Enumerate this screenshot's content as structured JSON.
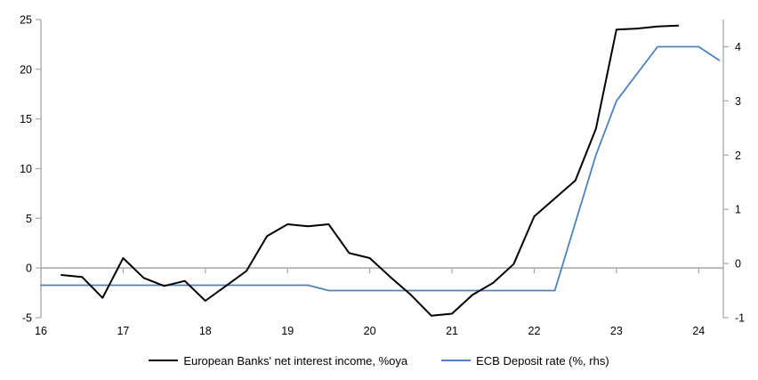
{
  "chart_data": {
    "type": "line",
    "title": "",
    "x_range": [
      16,
      24.3
    ],
    "x_ticks": [
      16,
      17,
      18,
      19,
      20,
      21,
      22,
      23,
      24
    ],
    "left_axis": {
      "range": [
        -5,
        25
      ],
      "ticks": [
        25,
        20,
        15,
        10,
        5,
        0,
        -5
      ]
    },
    "right_axis": {
      "range": [
        -1,
        4.5
      ],
      "ticks": [
        4,
        3,
        2,
        1,
        0,
        -1
      ]
    },
    "grid": false,
    "zero_line": true,
    "axis_color": "#a6a6a6",
    "legend_position": "bottom-center",
    "series": [
      {
        "name": "European Banks' net interest income, %oya",
        "axis": "left",
        "color": "#000000",
        "line_width": 2,
        "x_start": 16.25,
        "x_step": 0.25,
        "values": [
          -0.7,
          -0.9,
          -3.0,
          1.0,
          -1.0,
          -1.8,
          -1.3,
          -3.3,
          -1.8,
          -0.3,
          3.2,
          4.4,
          4.2,
          4.4,
          1.5,
          1.0,
          -0.9,
          -2.7,
          -4.8,
          -4.6,
          -2.7,
          -1.5,
          0.4,
          5.2,
          7.0,
          8.8,
          14.0,
          24.0,
          24.1,
          24.3,
          24.4
        ]
      },
      {
        "name": "ECB Deposit rate (%, rhs)",
        "axis": "right",
        "color": "#4e82bd",
        "line_width": 1.8,
        "x_start": 16.0,
        "x_step": 0.25,
        "values": [
          -0.4,
          -0.4,
          -0.4,
          -0.4,
          -0.4,
          -0.4,
          -0.4,
          -0.4,
          -0.4,
          -0.4,
          -0.4,
          -0.4,
          -0.4,
          -0.4,
          -0.5,
          -0.5,
          -0.5,
          -0.5,
          -0.5,
          -0.5,
          -0.5,
          -0.5,
          -0.5,
          -0.5,
          -0.5,
          -0.5,
          0.75,
          2.0,
          3.0,
          3.5,
          4.0,
          4.0,
          4.0,
          3.75
        ]
      }
    ]
  },
  "legend": {
    "items": [
      {
        "label": "European Banks' net interest income, %oya",
        "color": "#000000"
      },
      {
        "label": "ECB Deposit rate (%, rhs)",
        "color": "#4e82bd"
      }
    ]
  }
}
